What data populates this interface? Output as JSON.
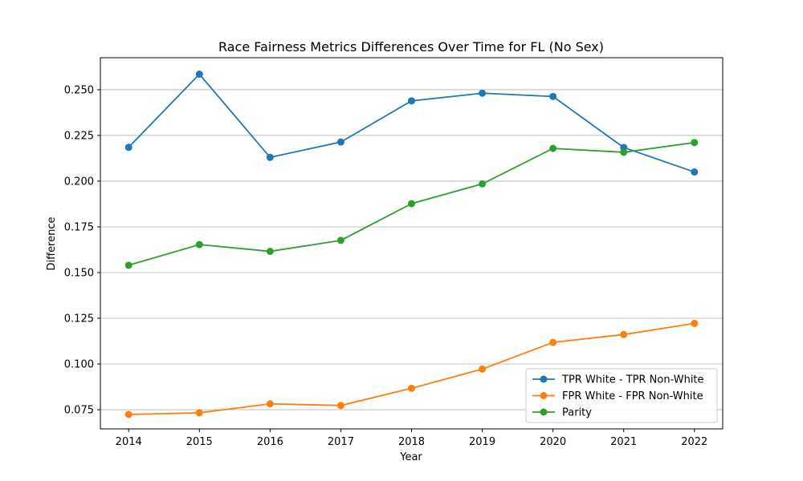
{
  "chart_data": {
    "type": "line",
    "title": "Race Fairness Metrics Differences Over Time for FL (No Sex)",
    "xlabel": "Year",
    "ylabel": "Difference",
    "x": [
      2014,
      2015,
      2016,
      2017,
      2018,
      2019,
      2020,
      2021,
      2022
    ],
    "ylim": [
      0.0645,
      0.2675
    ],
    "yticks": [
      "0.075",
      "0.100",
      "0.125",
      "0.150",
      "0.175",
      "0.200",
      "0.225",
      "0.250"
    ],
    "grid": "horizontal",
    "legend_position": "lower-right",
    "series": [
      {
        "name": "TPR White - TPR Non-White",
        "color": "#1f77b4",
        "values": [
          0.2185,
          0.2585,
          0.213,
          0.2214,
          0.2439,
          0.2481,
          0.2463,
          0.2184,
          0.205
        ]
      },
      {
        "name": "FPR White - FPR Non-White",
        "color": "#ff7f0e",
        "values": [
          0.0724,
          0.0733,
          0.0782,
          0.0773,
          0.0867,
          0.0972,
          0.1118,
          0.1161,
          0.1222
        ]
      },
      {
        "name": "Parity",
        "color": "#2ca02c",
        "values": [
          0.154,
          0.1653,
          0.1616,
          0.1676,
          0.1877,
          0.1985,
          0.2179,
          0.2158,
          0.2211
        ]
      }
    ]
  }
}
